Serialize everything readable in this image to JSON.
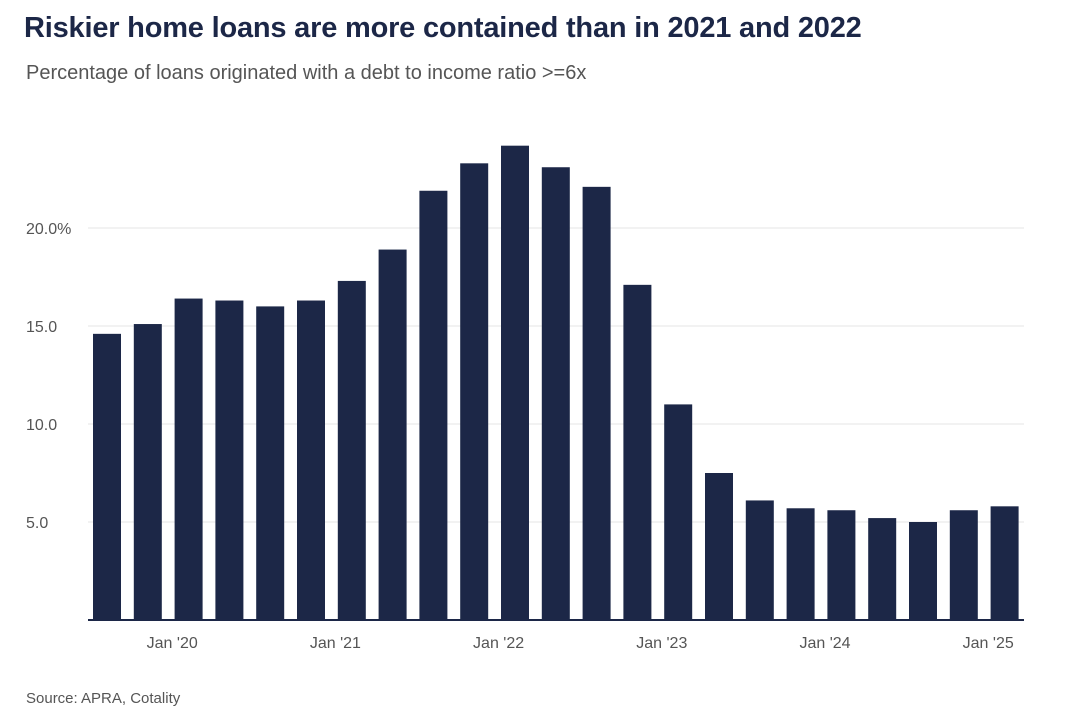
{
  "title": "Riskier home loans are more contained than in 2021 and 2022",
  "subtitle": "Percentage of loans originated with a debt to income ratio >=6x",
  "source": "Source: APRA, Cotality",
  "colors": {
    "bar": "#1c2747",
    "grid": "#e6e6e6",
    "axis": "#1c2747",
    "tick_text": "#555555"
  },
  "chart_data": {
    "type": "bar",
    "title": "",
    "xlabel": "",
    "ylabel": "",
    "ylim": [
      0,
      25
    ],
    "grid": true,
    "y_ticks": [
      {
        "value": 5,
        "label": "5.0"
      },
      {
        "value": 10,
        "label": "10.0"
      },
      {
        "value": 15,
        "label": "15.0"
      },
      {
        "value": 20,
        "label": "20.0%"
      }
    ],
    "x_ticks": [
      {
        "after_index": 1,
        "label": "Jan '20"
      },
      {
        "after_index": 5,
        "label": "Jan '21"
      },
      {
        "after_index": 9,
        "label": "Jan '22"
      },
      {
        "after_index": 13,
        "label": "Jan '23"
      },
      {
        "after_index": 17,
        "label": "Jan '24"
      },
      {
        "after_index": 21,
        "label": "Jan '25"
      }
    ],
    "values": [
      14.6,
      15.1,
      16.4,
      16.3,
      16.0,
      16.3,
      17.3,
      18.9,
      21.9,
      23.3,
      24.2,
      23.1,
      22.1,
      17.1,
      11.0,
      7.5,
      6.1,
      5.7,
      5.6,
      5.2,
      5.0,
      5.6,
      5.8
    ]
  }
}
